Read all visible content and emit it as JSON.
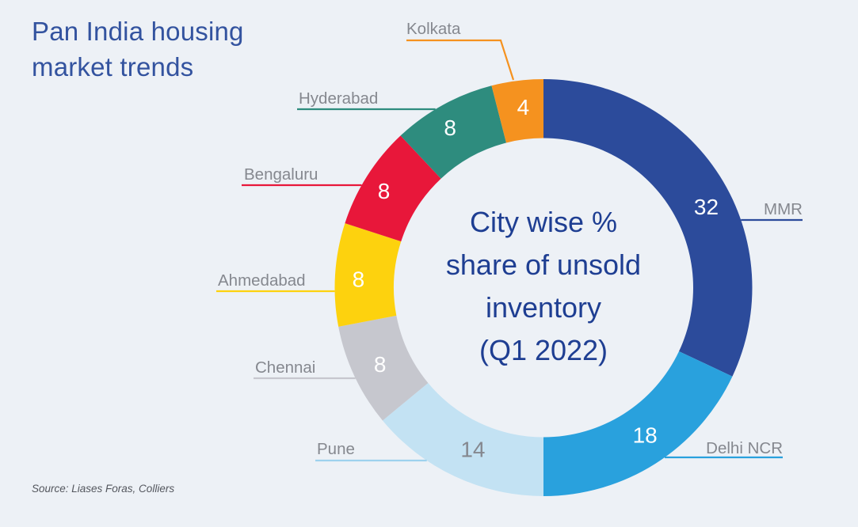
{
  "page": {
    "background": "#edf1f6"
  },
  "title": {
    "text": "Pan India housing\nmarket trends",
    "color": "#33539f"
  },
  "source": {
    "text": "Source: Liases Foras, Colliers"
  },
  "chart_data": {
    "type": "pie",
    "subtype": "donut",
    "title": "City wise % share of unsold inventory (Q1 2022)",
    "center_label": "City wise %\nshare of unsold\ninventory\n(Q1 2022)",
    "unit": "percent",
    "period": "Q1 2022",
    "total": 100,
    "start_angle_deg": 0,
    "direction": "clockwise",
    "label_color": "#85888f",
    "segments": [
      {
        "label": "MMR",
        "value": 32,
        "color": "#2c4b9b",
        "value_text_color": "#ffffff",
        "leader_color": "#2c4b9b"
      },
      {
        "label": "Delhi NCR",
        "value": 18,
        "color": "#29a1dd",
        "value_text_color": "#ffffff",
        "leader_color": "#29a1dd"
      },
      {
        "label": "Pune",
        "value": 14,
        "color": "#c3e2f3",
        "value_text_color": "#85888f",
        "leader_color": "#9ed2ee"
      },
      {
        "label": "Chennai",
        "value": 8,
        "color": "#c6c7ce",
        "value_text_color": "#ffffff",
        "leader_color": "#c6c7ce"
      },
      {
        "label": "Ahmedabad",
        "value": 8,
        "color": "#fdd20e",
        "value_text_color": "#ffffff",
        "leader_color": "#fdd20e"
      },
      {
        "label": "Bengaluru",
        "value": 8,
        "color": "#e8173a",
        "value_text_color": "#ffffff",
        "leader_color": "#e8173a"
      },
      {
        "label": "Hyderabad",
        "value": 8,
        "color": "#2e8c7e",
        "value_text_color": "#ffffff",
        "leader_color": "#2e8c7e"
      },
      {
        "label": "Kolkata",
        "value": 4,
        "color": "#f5921f",
        "value_text_color": "#ffffff",
        "leader_color": "#f5921f"
      }
    ]
  }
}
